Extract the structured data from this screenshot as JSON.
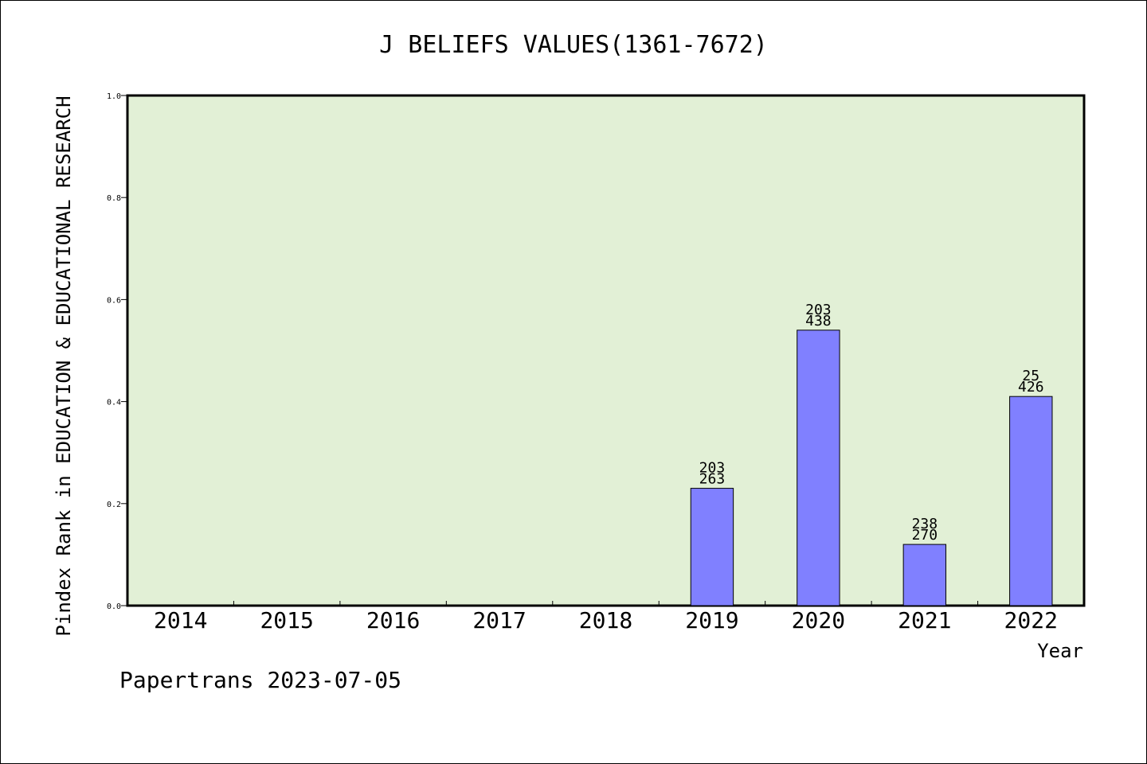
{
  "chart_data": {
    "type": "bar",
    "title": "J BELIEFS VALUES(1361-7672)",
    "xlabel": "Year",
    "ylabel": "Pindex Rank in EDUCATION & EDUCATIONAL RESEARCH",
    "categories": [
      "2014",
      "2015",
      "2016",
      "2017",
      "2018",
      "2019",
      "2020",
      "2021",
      "2022"
    ],
    "values": [
      null,
      null,
      null,
      null,
      null,
      0.23,
      0.54,
      0.12,
      0.41
    ],
    "bar_labels": [
      null,
      null,
      null,
      null,
      null,
      {
        "top": "203",
        "bottom": "263"
      },
      {
        "top": "203",
        "bottom": "438"
      },
      {
        "top": "238",
        "bottom": "270"
      },
      {
        "top": "25",
        "bottom": "426"
      }
    ],
    "ylim": [
      0,
      1.0
    ],
    "yticks": [
      "0.0",
      "0.2",
      "0.4",
      "0.6",
      "0.8",
      "1.0"
    ],
    "grid": false,
    "colors": {
      "plot_background": "#e2f0d6",
      "bar_fill": "#8080ff",
      "bar_stroke": "#000000"
    }
  },
  "footer": {
    "text": "Papertrans 2023-07-05"
  }
}
